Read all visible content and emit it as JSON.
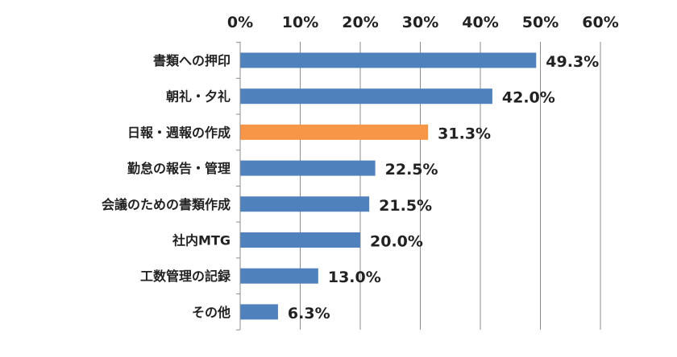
{
  "chart_data": {
    "type": "bar",
    "orientation": "horizontal",
    "categories": [
      "書類への押印",
      "朝礼・夕礼",
      "日報・週報の作成",
      "勤怠の報告・管理",
      "会議のための書類作成",
      "社内MTG",
      "工数管理の記録",
      "その他"
    ],
    "values": [
      49.3,
      42.0,
      31.3,
      22.5,
      21.5,
      20.0,
      13.0,
      6.3
    ],
    "data_labels": [
      "49.3%",
      "42.0%",
      "31.3%",
      "22.5%",
      "21.5%",
      "20.0%",
      "13.0%",
      "6.3%"
    ],
    "xlim": [
      0,
      60
    ],
    "xticks": [
      0,
      10,
      20,
      30,
      40,
      50,
      60
    ],
    "xtick_labels": [
      "0%",
      "10%",
      "20%",
      "30%",
      "40%",
      "50%",
      "60%"
    ],
    "x_axis_position": "top",
    "grid": true,
    "legend": "none",
    "title": "",
    "xlabel": "",
    "ylabel": "",
    "colors": {
      "default": "#4f81bd",
      "highlight": "#f79646"
    },
    "highlight_index": 2
  }
}
